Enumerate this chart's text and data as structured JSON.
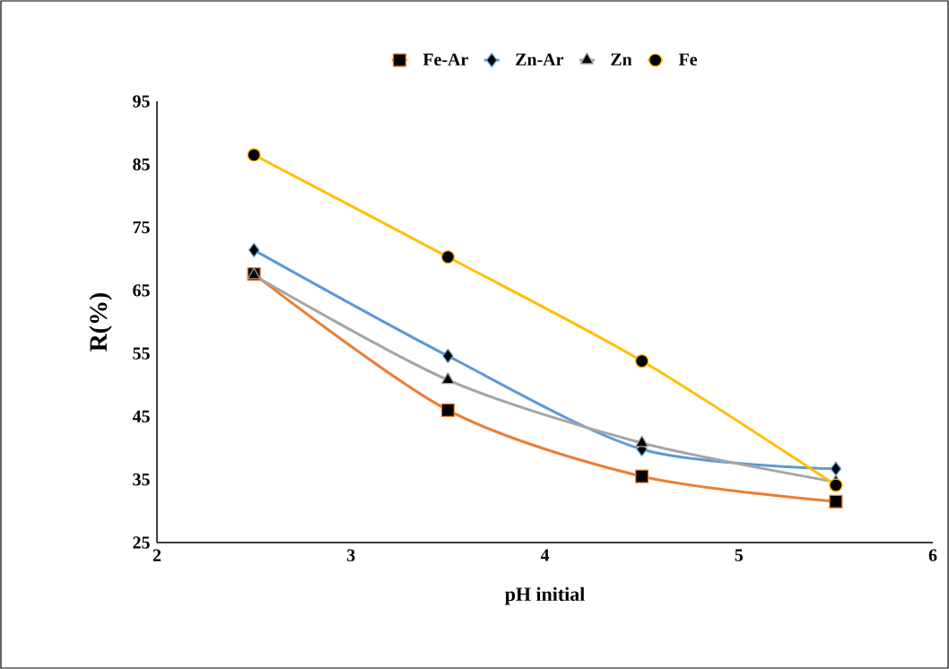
{
  "chart_data": {
    "type": "line",
    "xlabel": "pH initial",
    "ylabel": "R(%)",
    "x": [
      2.5,
      3.5,
      4.5,
      5.5
    ],
    "series": [
      {
        "name": "Fe-Ar",
        "color": "#ed7d31",
        "marker": "square",
        "values": [
          67.6,
          46.0,
          35.5,
          31.5
        ]
      },
      {
        "name": "Zn-Ar",
        "color": "#5b9bd5",
        "marker": "diamond",
        "values": [
          71.4,
          54.6,
          39.8,
          36.7
        ]
      },
      {
        "name": "Zn",
        "color": "#a5a5a5",
        "marker": "triangle",
        "values": [
          67.4,
          50.8,
          40.8,
          34.6
        ]
      },
      {
        "name": "Fe",
        "color": "#ffc000",
        "marker": "circle",
        "values": [
          86.5,
          70.3,
          53.8,
          34.1
        ]
      }
    ],
    "xlim": [
      2,
      6
    ],
    "xticks": [
      2,
      3,
      4,
      5,
      6
    ],
    "ylim": [
      25,
      95
    ],
    "yticks": [
      25,
      35,
      45,
      55,
      65,
      75,
      85,
      95
    ],
    "grid": false,
    "legend": "top",
    "line_style": "solid"
  }
}
